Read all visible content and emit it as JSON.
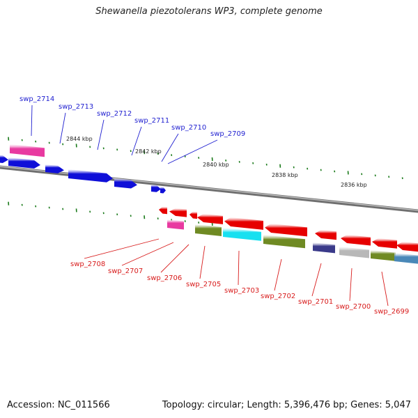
{
  "title": "Shewanella piezotolerans WP3, complete genome",
  "accession_text": "Accession: NC_011566",
  "summary_text": "Topology: circular; Length: 5,396,476 bp; Genes: 5,047",
  "colors": {
    "backbone": "#888888",
    "tick": "#1a7a1a",
    "forward_label": "#1f1fd0",
    "reverse_label": "#d81b1b",
    "forward_gene": "#0f0fd8",
    "reverse_gene": "#e60000",
    "cog_pink": "#e83aa0",
    "cog_olive": "#6f8a23",
    "cog_cyan": "#18e0f0",
    "cog_navy": "#3a3a8a",
    "cog_grey": "#b8b8b8",
    "cog_steel": "#4a88b8"
  },
  "coordinate_labels": [
    "2844 kbp",
    "2842 kbp",
    "2840 kbp",
    "2838 kbp",
    "2836 kbp"
  ],
  "forward_genes": [
    {
      "label": "swp_2714"
    },
    {
      "label": "swp_2713"
    },
    {
      "label": "swp_2712"
    },
    {
      "label": "swp_2711"
    },
    {
      "label": "swp_2710"
    },
    {
      "label": "swp_2709"
    }
  ],
  "reverse_genes": [
    {
      "label": "swp_2708"
    },
    {
      "label": "swp_2707"
    },
    {
      "label": "swp_2706"
    },
    {
      "label": "swp_2705"
    },
    {
      "label": "swp_2703"
    },
    {
      "label": "swp_2702"
    },
    {
      "label": "swp_2701"
    },
    {
      "label": "swp_2700"
    },
    {
      "label": "swp_2699"
    }
  ]
}
